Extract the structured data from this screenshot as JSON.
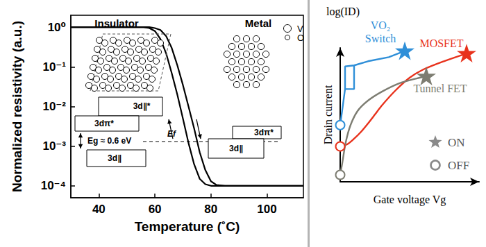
{
  "chart_data": [
    {
      "type": "line",
      "xlabel": "Temperature (˚C)",
      "ylabel": "Normalized resistivity (a.u.)",
      "log": "y",
      "grid": false,
      "xlim": [
        30,
        113
      ],
      "xticks": [
        40,
        60,
        80,
        100
      ],
      "ylim": [
        5e-05,
        2
      ],
      "yticks": [
        {
          "value": 0.0001,
          "label": "10⁻⁴"
        },
        {
          "value": 0.001,
          "label": "10⁻³"
        },
        {
          "value": 0.01,
          "label": "10⁻²"
        },
        {
          "value": 0.1,
          "label": "10⁻¹"
        },
        {
          "value": 1,
          "label": "10⁰"
        }
      ],
      "x": [
        30,
        50,
        56,
        58,
        60,
        62,
        64,
        66,
        68,
        70,
        72,
        74,
        76,
        78,
        80,
        82,
        85,
        100,
        113
      ],
      "series": [
        {
          "color": "#000000",
          "values": [
            1,
            1,
            1,
            0.95,
            0.8,
            0.5,
            0.22,
            0.07,
            0.02,
            0.005,
            0.0012,
            0.00035,
            0.00015,
            0.00011,
            0.0001,
            0.0001,
            0.0001,
            0.0001,
            0.0001
          ]
        },
        {
          "color": "#000000",
          "values": [
            1,
            1,
            1,
            1,
            0.95,
            0.85,
            0.6,
            0.3,
            0.11,
            0.035,
            0.01,
            0.0028,
            0.0007,
            0.00025,
            0.00013,
            0.000105,
            0.0001,
            0.0001,
            0.0001
          ]
        }
      ],
      "annotations": [
        "Insulator",
        "Metal",
        "V",
        "O",
        "3d∥*",
        "3dπ*",
        "3d∥",
        "Eg ≈ 0.6 eV",
        "Ef",
        "3dπ*",
        "3d∥"
      ]
    },
    {
      "type": "line",
      "xlabel": "Gate voltage Vg",
      "ylabel": "Drain current",
      "tick_labels": false,
      "grid": false,
      "xlim": [
        0,
        10
      ],
      "ylim": [
        0,
        13
      ],
      "series": [
        {
          "name": "VO₂ Switch",
          "color": "#2f8fd8",
          "x": [
            0,
            0.35,
            1.0,
            1.0,
            0.35,
            0.35,
            0.35,
            1.0,
            2.0,
            3.5,
            4.65
          ],
          "values": [
            5.5,
            9.0,
            9.0,
            11.3,
            11.2,
            9.0,
            11.2,
            11.3,
            11.7,
            12.1,
            12.7
          ]
        },
        {
          "name": "MOSFET",
          "color": "#e8321c",
          "x": [
            0,
            0.5,
            1.0,
            1.5,
            2.0,
            2.5,
            3.0,
            4.0,
            5.0,
            6.0,
            7.5,
            9.1
          ],
          "values": [
            3.43,
            3.64,
            4.18,
            4.85,
            5.66,
            6.53,
            7.41,
            8.89,
            10.1,
            10.91,
            11.72,
            12.46
          ]
        },
        {
          "name": "Tunnel FET",
          "color": "#7d7d72",
          "x": [
            0,
            0.15,
            0.4,
            0.75,
            1.25,
            2.0,
            3.0,
            4.25,
            5.5,
            6.2
          ],
          "values": [
            0.67,
            1.82,
            3.84,
            5.52,
            6.87,
            7.88,
            8.75,
            9.56,
            10.03,
            10.24
          ]
        }
      ],
      "annotations": [
        "log(ID)",
        "ON",
        "OFF"
      ]
    }
  ]
}
